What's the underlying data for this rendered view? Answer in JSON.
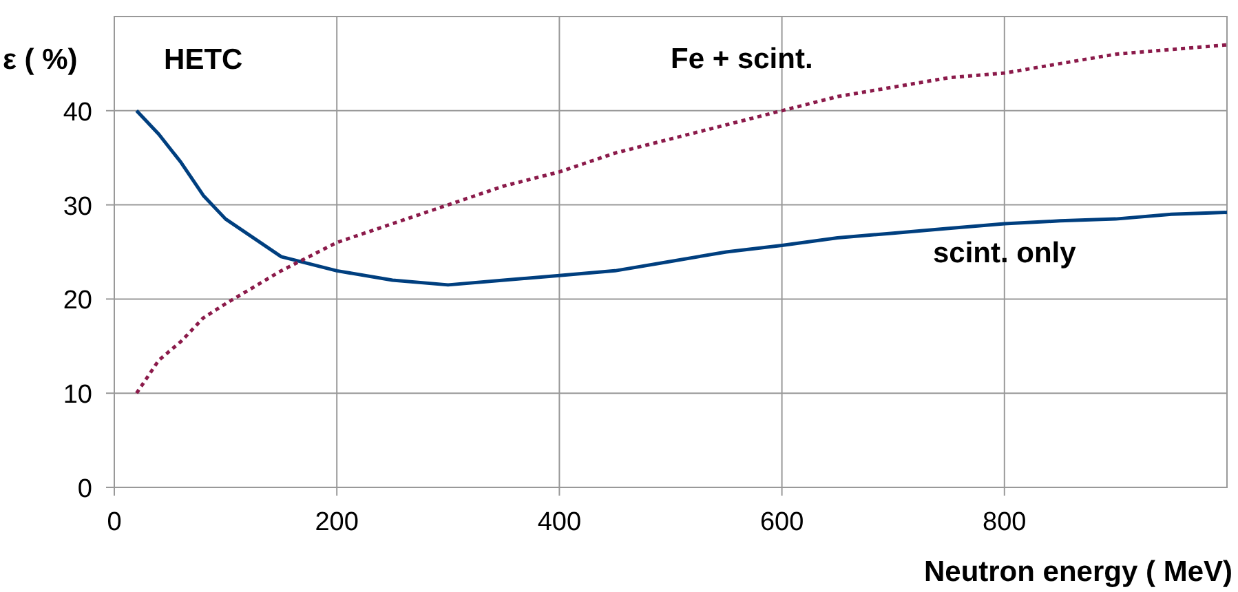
{
  "chart_data": {
    "type": "line",
    "xlabel": "Neutron energy ( MeV)",
    "ylabel": "ε ( %)",
    "annotations": [
      "HETC"
    ],
    "xlim": [
      0,
      1000
    ],
    "ylim": [
      0,
      50
    ],
    "xticks": [
      0,
      200,
      400,
      600,
      800
    ],
    "yticks": [
      0,
      10,
      20,
      30,
      40
    ],
    "grid": true,
    "marker": "none",
    "x": [
      20,
      40,
      60,
      80,
      100,
      150,
      200,
      250,
      300,
      350,
      400,
      450,
      500,
      550,
      600,
      650,
      700,
      750,
      800,
      850,
      900,
      950,
      1000
    ],
    "series": [
      {
        "name": "scint. only",
        "color": "#003f7f",
        "line_style": "solid",
        "values": [
          40,
          37.5,
          34.5,
          31,
          28.5,
          24.5,
          23,
          22,
          21.5,
          22,
          22.5,
          23,
          24,
          25,
          25.7,
          26.5,
          27,
          27.5,
          28,
          28.3,
          28.5,
          29,
          29.2
        ]
      },
      {
        "name": "Fe + scint.",
        "color": "#8b1a4a",
        "line_style": "dotted",
        "values": [
          10,
          13.5,
          15.5,
          18,
          19.5,
          23,
          26,
          28,
          30,
          32,
          33.5,
          35.5,
          37,
          38.5,
          40,
          41.5,
          42.5,
          43.5,
          44,
          45,
          46,
          46.5,
          47
        ]
      }
    ]
  }
}
